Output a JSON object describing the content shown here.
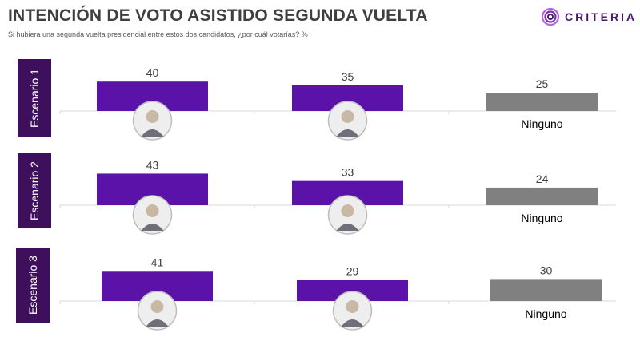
{
  "title": "INTENCIÓN DE VOTO ASISTIDO SEGUNDA VUELTA",
  "subtitle": "Si hubiera una segunda vuelta presidencial entre estos dos candidatos, ¿por cuál votarías? %",
  "logo": {
    "text": "CRITERIA",
    "icon": "criteria-logo-icon"
  },
  "colors": {
    "candidate_bar": "#5b12a8",
    "none_bar": "#808080",
    "panel_label_bg": "#3d0f5c",
    "photo_ring": "#bdbdbd"
  },
  "chart_data": [
    {
      "type": "bar",
      "panel_label": "Escenario 1",
      "categories": [
        "",
        "",
        "Ninguno"
      ],
      "icons": [
        "candidate-photo-icon",
        "candidate-photo-icon",
        null
      ],
      "values": [
        40,
        35,
        25
      ]
    },
    {
      "type": "bar",
      "panel_label": "Escenario 2",
      "categories": [
        "",
        "",
        "Ninguno"
      ],
      "icons": [
        "candidate-photo-icon",
        "candidate-photo-icon",
        null
      ],
      "values": [
        43,
        33,
        24
      ]
    },
    {
      "type": "bar",
      "panel_label": "Escenario 3",
      "categories": [
        "",
        "",
        "Ninguno"
      ],
      "icons": [
        "candidate-photo-icon",
        "candidate-photo-icon",
        null
      ],
      "values": [
        41,
        29,
        30
      ]
    }
  ]
}
